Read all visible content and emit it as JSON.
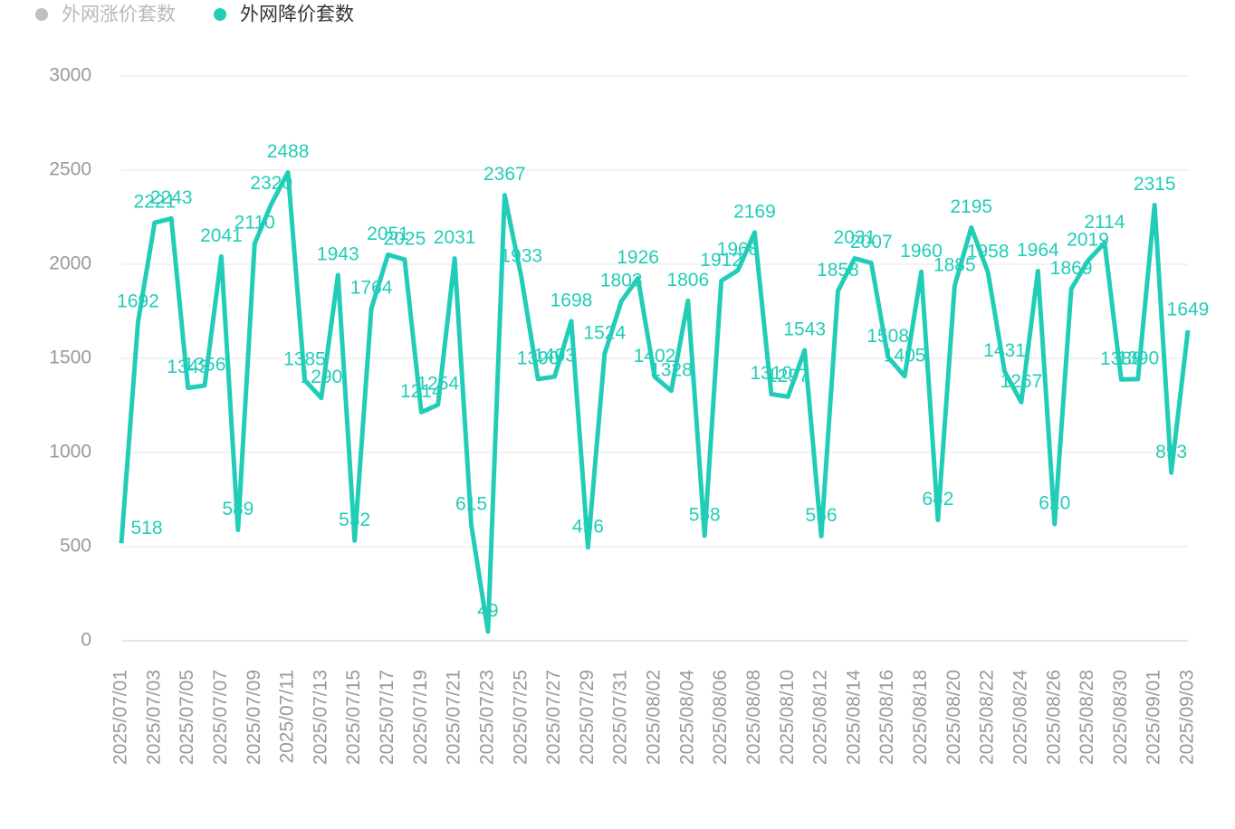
{
  "chart_data": {
    "type": "line",
    "categories": [
      "2025/07/01",
      null,
      "2025/07/03",
      null,
      "2025/07/05",
      null,
      "2025/07/07",
      null,
      "2025/07/09",
      null,
      "2025/07/11",
      null,
      "2025/07/13",
      null,
      "2025/07/15",
      null,
      "2025/07/17",
      null,
      "2025/07/19",
      null,
      "2025/07/21",
      null,
      "2025/07/23",
      null,
      "2025/07/25",
      null,
      "2025/07/27",
      null,
      "2025/07/29",
      null,
      "2025/07/31",
      null,
      "2025/08/02",
      null,
      "2025/08/04",
      null,
      "2025/08/06",
      null,
      "2025/08/08",
      null,
      "2025/08/10",
      null,
      "2025/08/12",
      null,
      "2025/08/14",
      null,
      "2025/08/16",
      null,
      "2025/08/18",
      null,
      "2025/08/20",
      null,
      "2025/08/22",
      null,
      "2025/08/24",
      null,
      "2025/08/26",
      null,
      "2025/08/28",
      null,
      "2025/08/30",
      null,
      "2025/09/01",
      null,
      "2025/09/03"
    ],
    "series": [
      {
        "name": "外网涨价套数",
        "color": "#c0c0c4",
        "visible": false
      },
      {
        "name": "外网降价套数",
        "color": "#22cdb8",
        "visible": true,
        "values": [
          518,
          1692,
          2221,
          2243,
          1343,
          1356,
          2041,
          589,
          2110,
          2320,
          2488,
          1385,
          1290,
          1943,
          532,
          1764,
          2051,
          2025,
          1214,
          1254,
          2031,
          615,
          49,
          2367,
          1933,
          1390,
          1403,
          1698,
          496,
          1524,
          1803,
          1926,
          1402,
          1328,
          1806,
          558,
          1912,
          1968,
          2169,
          1310,
          1297,
          1543,
          556,
          1858,
          2031,
          2007,
          1508,
          1405,
          1960,
          642,
          1885,
          2195,
          1958,
          1431,
          1267,
          1964,
          620,
          1869,
          2019,
          2114,
          1388,
          1390,
          2315,
          893,
          1649
        ]
      }
    ],
    "ylim": [
      0,
      3000
    ],
    "yticks": [
      0,
      500,
      1000,
      1500,
      2000,
      2500,
      3000
    ],
    "grid": true,
    "legend": "top-left"
  }
}
